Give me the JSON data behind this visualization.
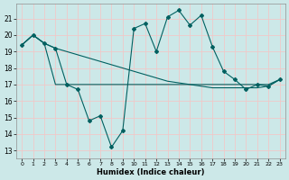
{
  "xlabel": "Humidex (Indice chaleur)",
  "bg_color": "#cce8e8",
  "grid_color": "#f0c8c8",
  "line_color": "#006060",
  "xlim": [
    -0.5,
    23.5
  ],
  "ylim": [
    12.5,
    21.9
  ],
  "yticks": [
    13,
    14,
    15,
    16,
    17,
    18,
    19,
    20,
    21
  ],
  "xticks": [
    0,
    1,
    2,
    3,
    4,
    5,
    6,
    7,
    8,
    9,
    10,
    11,
    12,
    13,
    14,
    15,
    16,
    17,
    18,
    19,
    20,
    21,
    22,
    23
  ],
  "curve1_x": [
    0,
    1,
    2,
    3,
    4,
    5,
    6,
    7,
    8,
    9,
    10,
    11,
    12,
    13,
    14,
    15,
    16,
    17,
    18,
    19,
    20,
    21,
    22,
    23
  ],
  "curve1_y": [
    19.4,
    20.0,
    19.5,
    19.2,
    17.0,
    16.7,
    14.8,
    15.1,
    13.2,
    14.2,
    20.4,
    20.7,
    19.0,
    21.1,
    21.5,
    20.6,
    21.2,
    19.3,
    17.8,
    17.3,
    16.7,
    17.0,
    16.9,
    17.3
  ],
  "curve2_x": [
    0,
    1,
    2,
    3,
    4,
    5,
    6,
    7,
    8,
    9,
    10,
    11,
    12,
    13,
    14,
    15,
    16,
    17,
    18,
    19,
    20,
    21,
    22,
    23
  ],
  "curve2_y": [
    19.4,
    20.0,
    19.5,
    19.2,
    19.0,
    18.8,
    18.6,
    18.4,
    18.2,
    18.0,
    17.8,
    17.6,
    17.4,
    17.2,
    17.1,
    17.0,
    16.9,
    16.8,
    16.8,
    16.8,
    16.8,
    16.8,
    16.9,
    17.3
  ],
  "curve3_x": [
    0,
    1,
    2,
    3,
    4,
    5,
    6,
    7,
    8,
    9,
    10,
    11,
    12,
    13,
    14,
    15,
    16,
    17,
    18,
    19,
    20,
    21,
    22,
    23
  ],
  "curve3_y": [
    19.4,
    20.0,
    19.5,
    17.0,
    17.0,
    17.0,
    17.0,
    17.0,
    17.0,
    17.0,
    17.0,
    17.0,
    17.0,
    17.0,
    17.0,
    17.0,
    17.0,
    17.0,
    17.0,
    17.0,
    17.0,
    17.0,
    17.0,
    17.3
  ]
}
